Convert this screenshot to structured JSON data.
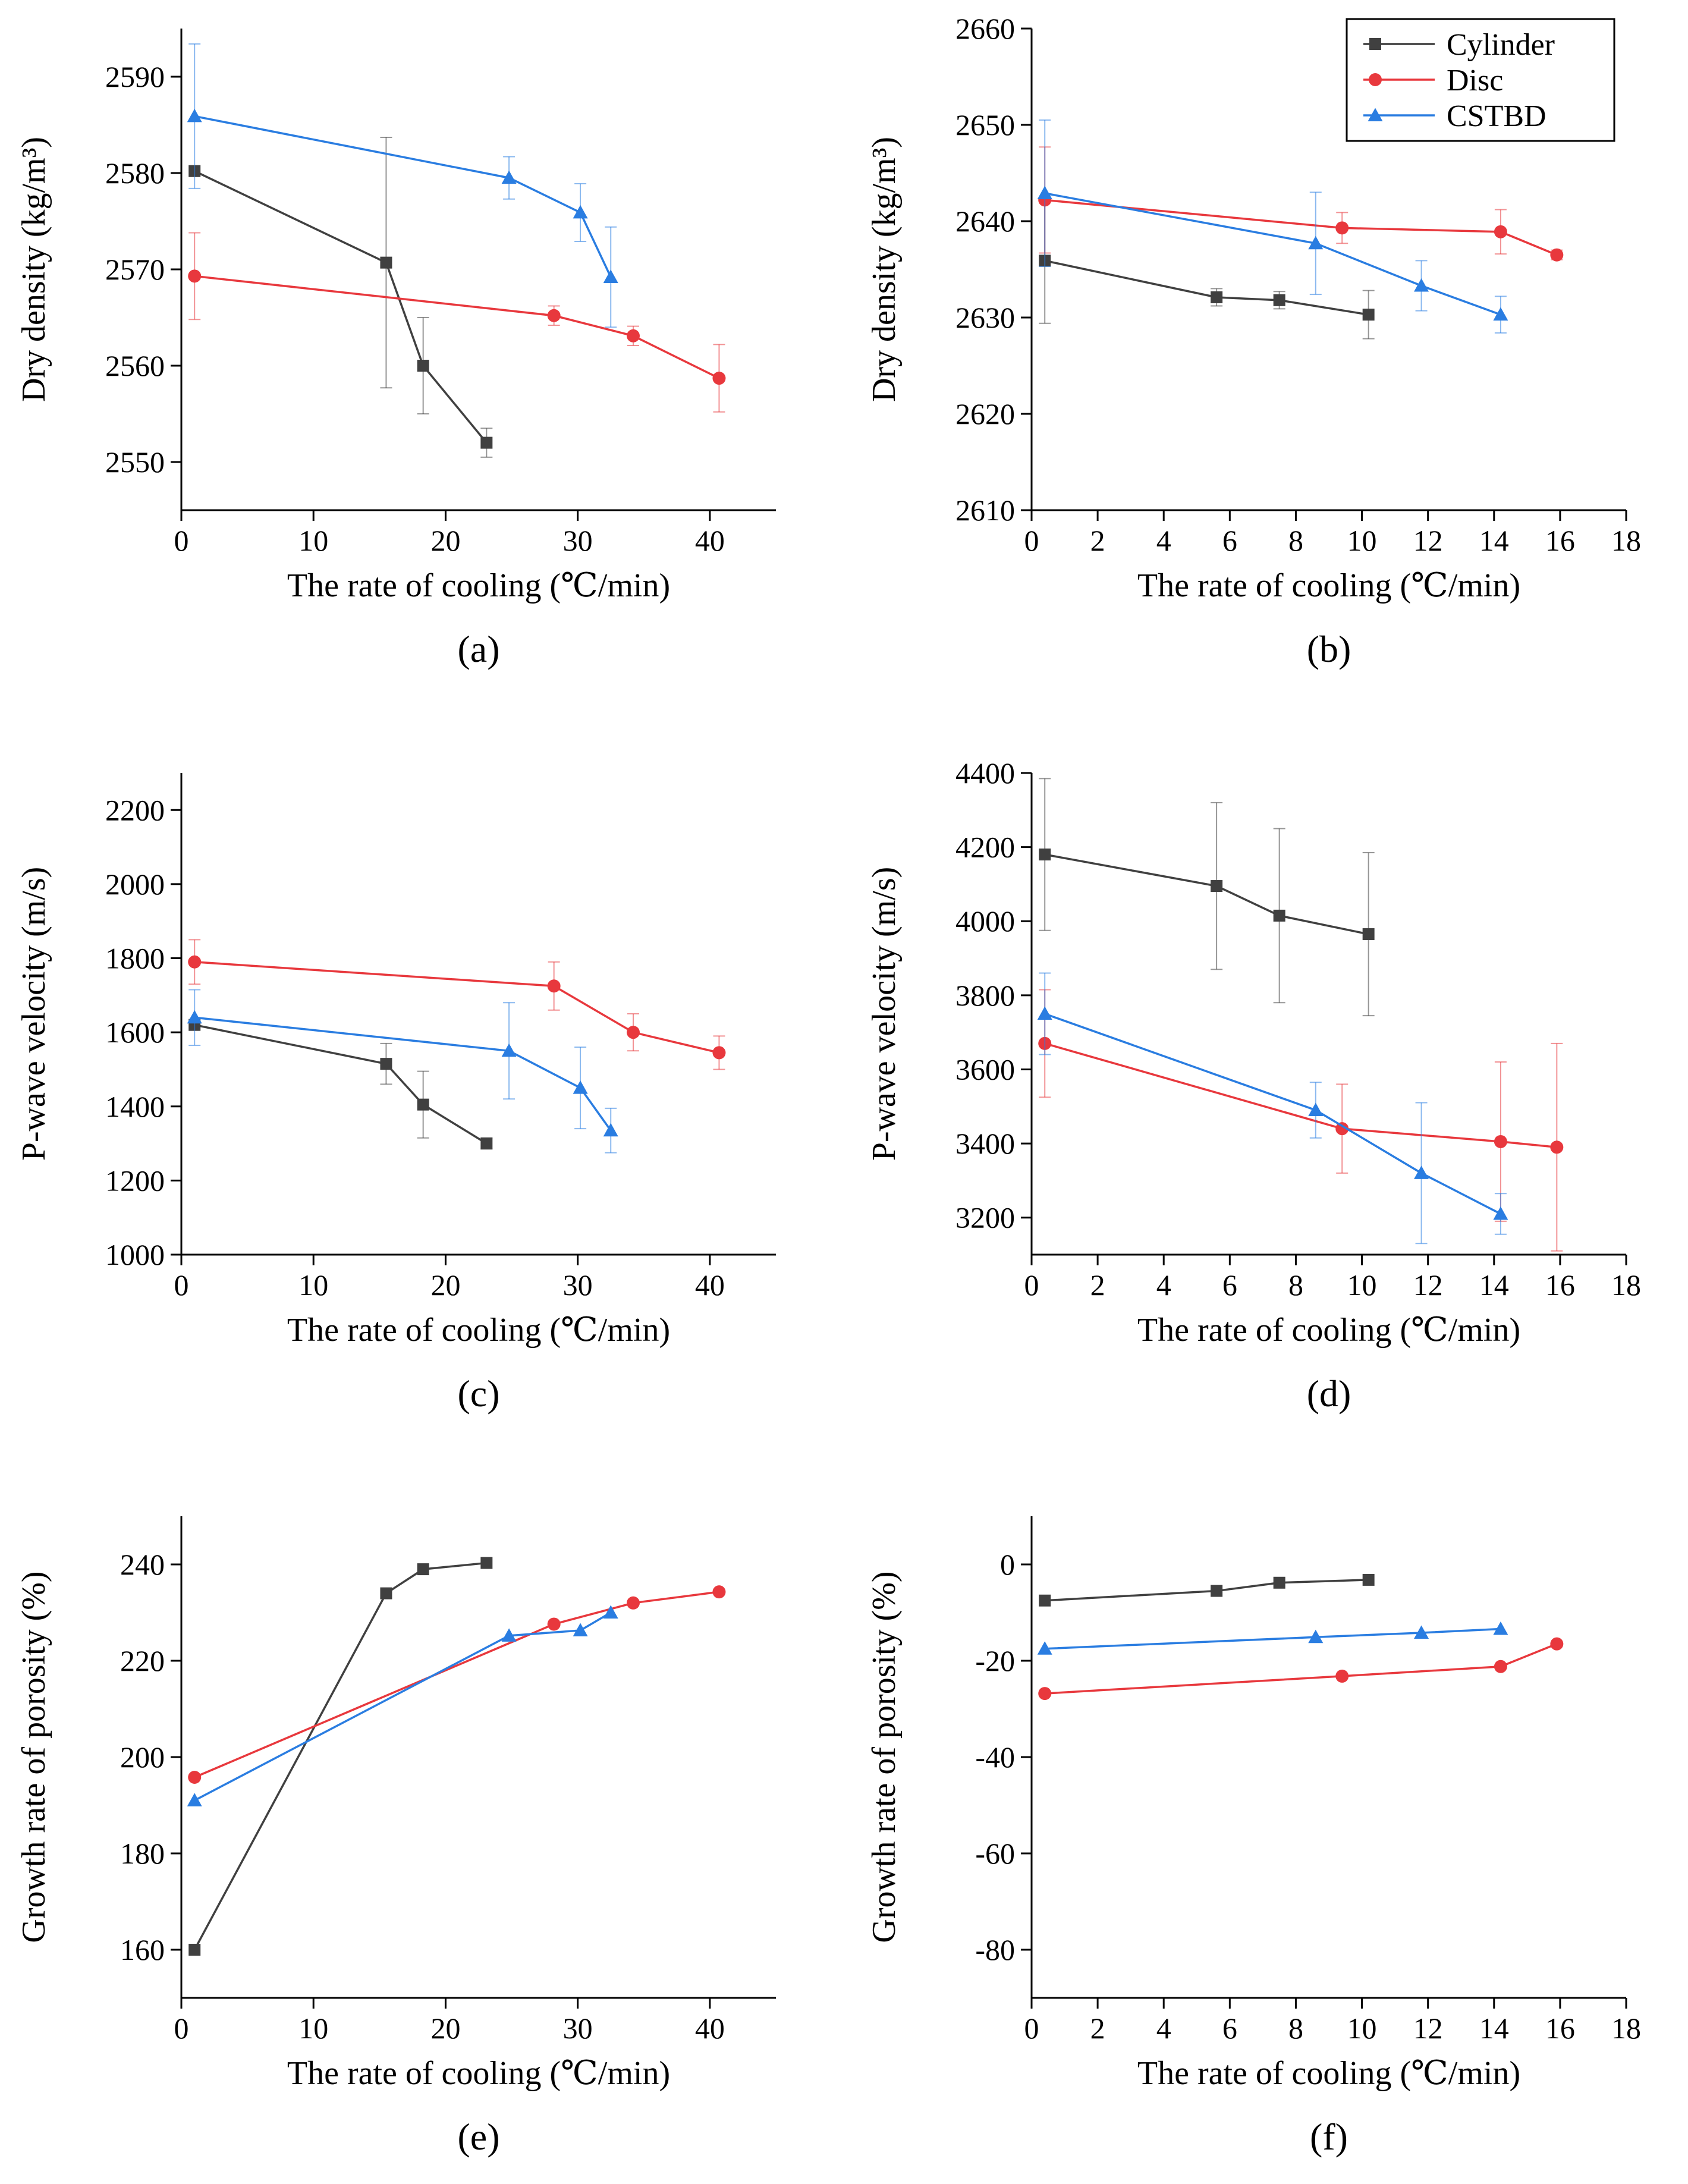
{
  "colors": {
    "cylinder": "#404040",
    "disc": "#e8383d",
    "cstbd": "#2a7de1",
    "axis": "#000000"
  },
  "legend": [
    {
      "key": "cylinder",
      "label": "Cylinder",
      "marker": "square"
    },
    {
      "key": "disc",
      "label": "Disc",
      "marker": "circle"
    },
    {
      "key": "cstbd",
      "label": "CSTBD",
      "marker": "triangle"
    }
  ],
  "chart_data": [
    {
      "id": "a",
      "type": "line",
      "panel_label": "(a)",
      "xlabel": "The rate of cooling (℃/min)",
      "ylabel": "Dry density (kg/m³)",
      "xlim": [
        0,
        45
      ],
      "ylim": [
        2545,
        2595
      ],
      "xticks": [
        0,
        10,
        20,
        30,
        40
      ],
      "yticks": [
        2550,
        2560,
        2570,
        2580,
        2590
      ],
      "series": [
        {
          "name": "Cylinder",
          "key": "cylinder",
          "marker": "square",
          "x": [
            1.0,
            15.5,
            18.3,
            23.1
          ],
          "y": [
            2580.2,
            2570.7,
            2560.0,
            2552.0
          ],
          "err": [
            0,
            13.0,
            5.0,
            1.5
          ]
        },
        {
          "name": "Disc",
          "key": "disc",
          "marker": "circle",
          "x": [
            1.0,
            28.2,
            34.2,
            40.7
          ],
          "y": [
            2569.3,
            2565.2,
            2563.1,
            2558.7
          ],
          "err": [
            4.5,
            1.0,
            1.0,
            3.5
          ]
        },
        {
          "name": "CSTBD",
          "key": "cstbd",
          "marker": "triangle",
          "x": [
            1.0,
            24.8,
            30.2,
            32.5
          ],
          "y": [
            2585.9,
            2579.5,
            2575.9,
            2569.2
          ],
          "err": [
            7.5,
            2.2,
            3.0,
            5.2
          ]
        }
      ]
    },
    {
      "id": "b",
      "type": "line",
      "panel_label": "(b)",
      "xlabel": "The rate of cooling (℃/min)",
      "ylabel": "Dry density (kg/m³)",
      "xlim": [
        0,
        18
      ],
      "ylim": [
        2610,
        2660
      ],
      "xticks": [
        0,
        2,
        4,
        6,
        8,
        10,
        12,
        14,
        16,
        18
      ],
      "yticks": [
        2610,
        2620,
        2630,
        2640,
        2650,
        2660
      ],
      "legend": true,
      "series": [
        {
          "name": "Cylinder",
          "key": "cylinder",
          "marker": "square",
          "x": [
            0.4,
            5.6,
            7.5,
            10.2
          ],
          "y": [
            2635.9,
            2632.1,
            2631.8,
            2630.3
          ],
          "err": [
            6.5,
            0.9,
            0.9,
            2.5
          ]
        },
        {
          "name": "Disc",
          "key": "disc",
          "marker": "circle",
          "x": [
            0.4,
            9.4,
            14.2,
            15.9
          ],
          "y": [
            2642.2,
            2639.3,
            2638.9,
            2636.5
          ],
          "err": [
            5.5,
            1.6,
            2.3,
            0.5
          ]
        },
        {
          "name": "CSTBD",
          "key": "cstbd",
          "marker": "triangle",
          "x": [
            0.4,
            8.6,
            11.8,
            14.2
          ],
          "y": [
            2642.9,
            2637.7,
            2633.3,
            2630.3
          ],
          "err": [
            7.6,
            5.3,
            2.6,
            1.9
          ]
        }
      ]
    },
    {
      "id": "c",
      "type": "line",
      "panel_label": "(c)",
      "xlabel": "The rate of cooling (℃/min)",
      "ylabel": "P-wave velocity (m/s)",
      "xlim": [
        0,
        45
      ],
      "ylim": [
        1000,
        2300
      ],
      "xticks": [
        0,
        10,
        20,
        30,
        40
      ],
      "yticks": [
        1000,
        1200,
        1400,
        1600,
        1800,
        2000,
        2200
      ],
      "series": [
        {
          "name": "Cylinder",
          "key": "cylinder",
          "marker": "square",
          "x": [
            1.0,
            15.5,
            18.3,
            23.1
          ],
          "y": [
            1620,
            1515,
            1405,
            1300
          ],
          "err": [
            0,
            55,
            90,
            15
          ]
        },
        {
          "name": "Disc",
          "key": "disc",
          "marker": "circle",
          "x": [
            1.0,
            28.2,
            34.2,
            40.7
          ],
          "y": [
            1790,
            1725,
            1600,
            1545
          ],
          "err": [
            60,
            65,
            50,
            45
          ]
        },
        {
          "name": "CSTBD",
          "key": "cstbd",
          "marker": "triangle",
          "x": [
            1.0,
            24.8,
            30.2,
            32.5
          ],
          "y": [
            1640,
            1550,
            1450,
            1335
          ],
          "err": [
            75,
            130,
            110,
            60
          ]
        }
      ]
    },
    {
      "id": "d",
      "type": "line",
      "panel_label": "(d)",
      "xlabel": "The rate of cooling (℃/min)",
      "ylabel": "P-wave velocity (m/s)",
      "xlim": [
        0,
        18
      ],
      "ylim": [
        3100,
        4400
      ],
      "xticks": [
        0,
        2,
        4,
        6,
        8,
        10,
        12,
        14,
        16,
        18
      ],
      "yticks": [
        3200,
        3400,
        3600,
        3800,
        4000,
        4200,
        4400
      ],
      "series": [
        {
          "name": "Cylinder",
          "key": "cylinder",
          "marker": "square",
          "x": [
            0.4,
            5.6,
            7.5,
            10.2
          ],
          "y": [
            4180,
            4095,
            4015,
            3965
          ],
          "err": [
            205,
            225,
            235,
            220
          ]
        },
        {
          "name": "Disc",
          "key": "disc",
          "marker": "circle",
          "x": [
            0.4,
            9.4,
            14.2,
            15.9
          ],
          "y": [
            3670,
            3440,
            3405,
            3390
          ],
          "err": [
            145,
            120,
            215,
            280
          ]
        },
        {
          "name": "CSTBD",
          "key": "cstbd",
          "marker": "triangle",
          "x": [
            0.4,
            8.6,
            11.8,
            14.2
          ],
          "y": [
            3750,
            3490,
            3320,
            3210
          ],
          "err": [
            110,
            75,
            190,
            55
          ]
        }
      ]
    },
    {
      "id": "e",
      "type": "line",
      "panel_label": "(e)",
      "xlabel": "The rate of cooling (℃/min)",
      "ylabel": "Growth rate of porosity (%)",
      "xlim": [
        0,
        45
      ],
      "ylim": [
        150,
        250
      ],
      "xticks": [
        0,
        10,
        20,
        30,
        40
      ],
      "yticks": [
        160,
        180,
        200,
        220,
        240
      ],
      "series": [
        {
          "name": "Cylinder",
          "key": "cylinder",
          "marker": "square",
          "x": [
            1.0,
            15.5,
            18.3,
            23.1
          ],
          "y": [
            160.0,
            234.0,
            239.0,
            240.3
          ],
          "err": [
            0,
            0,
            0,
            0
          ]
        },
        {
          "name": "Disc",
          "key": "disc",
          "marker": "circle",
          "x": [
            1.0,
            28.2,
            34.2,
            40.7
          ],
          "y": [
            195.8,
            227.6,
            232.0,
            234.3
          ],
          "err": [
            0,
            0,
            0,
            0
          ]
        },
        {
          "name": "CSTBD",
          "key": "cstbd",
          "marker": "triangle",
          "x": [
            1.0,
            24.8,
            30.2,
            32.5
          ],
          "y": [
            191.0,
            225.2,
            226.3,
            230.0
          ],
          "err": [
            0,
            0,
            0,
            0
          ]
        }
      ]
    },
    {
      "id": "f",
      "type": "line",
      "panel_label": "(f)",
      "xlabel": "The rate of cooling (℃/min)",
      "ylabel": "Growth rate of porosity (%)",
      "xlim": [
        0,
        18
      ],
      "ylim": [
        -90,
        10
      ],
      "xticks": [
        0,
        2,
        4,
        6,
        8,
        10,
        12,
        14,
        16,
        18
      ],
      "yticks": [
        -80,
        -60,
        -40,
        -20,
        0
      ],
      "series": [
        {
          "name": "Cylinder",
          "key": "cylinder",
          "marker": "square",
          "x": [
            0.4,
            5.6,
            7.5,
            10.2
          ],
          "y": [
            -7.5,
            -5.5,
            -3.8,
            -3.2
          ],
          "err": [
            0,
            0,
            0,
            0
          ]
        },
        {
          "name": "Disc",
          "key": "disc",
          "marker": "circle",
          "x": [
            0.4,
            9.4,
            14.2,
            15.9
          ],
          "y": [
            -26.8,
            -23.2,
            -21.2,
            -16.5
          ],
          "err": [
            0,
            0,
            0,
            0
          ]
        },
        {
          "name": "CSTBD",
          "key": "cstbd",
          "marker": "triangle",
          "x": [
            0.4,
            8.6,
            11.8,
            14.2
          ],
          "y": [
            -17.5,
            -15.1,
            -14.2,
            -13.4
          ],
          "err": [
            0,
            0,
            0,
            0
          ]
        }
      ]
    }
  ]
}
